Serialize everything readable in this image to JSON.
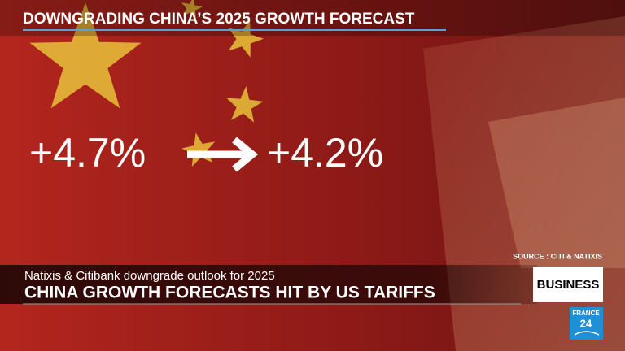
{
  "header": {
    "title": "DOWNGRADING CHINA’S 2025 GROWTH FORECAST"
  },
  "forecast": {
    "from": "+4.7%",
    "to": "+4.2%"
  },
  "source": "SOURCE : CITI & NATIXIS",
  "lower_third": {
    "subtitle": "Natixis & Citibank downgrade outlook for 2025",
    "headline": "CHINA GROWTH FORECASTS HIT BY US TARIFFS",
    "section": "BUSINESS"
  },
  "logo": {
    "line1": "FRANCE",
    "line2": "24"
  }
}
